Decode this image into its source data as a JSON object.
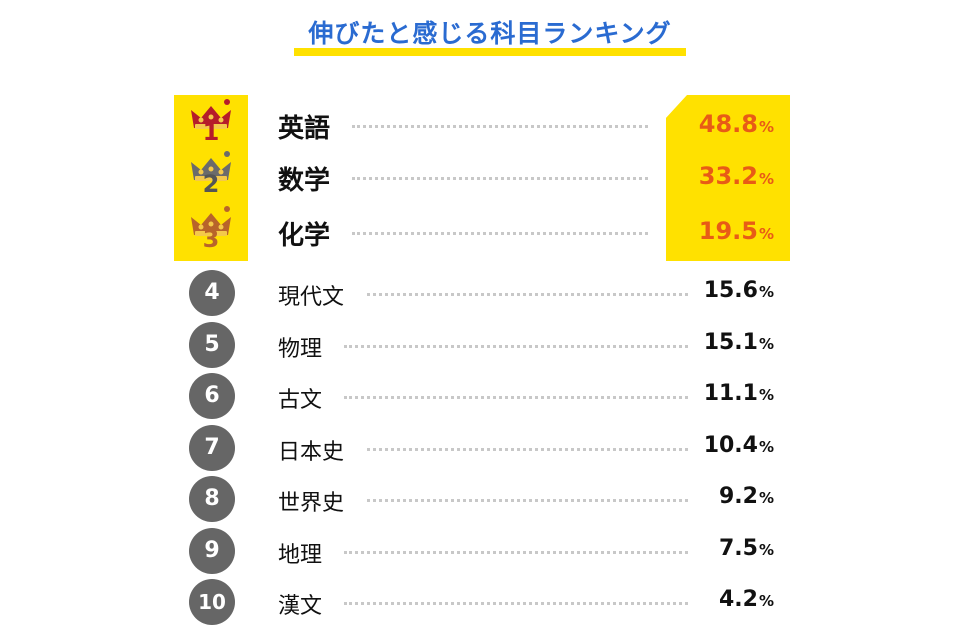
{
  "title": "伸びたと感じる科目ランキング",
  "colors": {
    "title": "#2a6bd1",
    "highlight": "#ffe100",
    "top_value": "#e85b16",
    "badge": "#666666"
  },
  "chart_data": {
    "type": "table",
    "title": "伸びたと感じる科目ランキング",
    "unit": "%",
    "rows": [
      {
        "rank": "1",
        "subject": "英語",
        "value": 48.8,
        "label": "48.8"
      },
      {
        "rank": "2",
        "subject": "数学",
        "value": 33.2,
        "label": "33.2"
      },
      {
        "rank": "3",
        "subject": "化学",
        "value": 19.5,
        "label": "19.5"
      },
      {
        "rank": "4",
        "subject": "現代文",
        "value": 15.6,
        "label": "15.6"
      },
      {
        "rank": "5",
        "subject": "物理",
        "value": 15.1,
        "label": "15.1"
      },
      {
        "rank": "6",
        "subject": "古文",
        "value": 11.1,
        "label": "11.1"
      },
      {
        "rank": "7",
        "subject": "日本史",
        "value": 10.4,
        "label": "10.4"
      },
      {
        "rank": "8",
        "subject": "世界史",
        "value": 9.2,
        "label": "9.2"
      },
      {
        "rank": "9",
        "subject": "地理",
        "value": 7.5,
        "label": "7.5"
      },
      {
        "rank": "10",
        "subject": "漢文",
        "value": 4.2,
        "label": "4.2"
      }
    ]
  }
}
